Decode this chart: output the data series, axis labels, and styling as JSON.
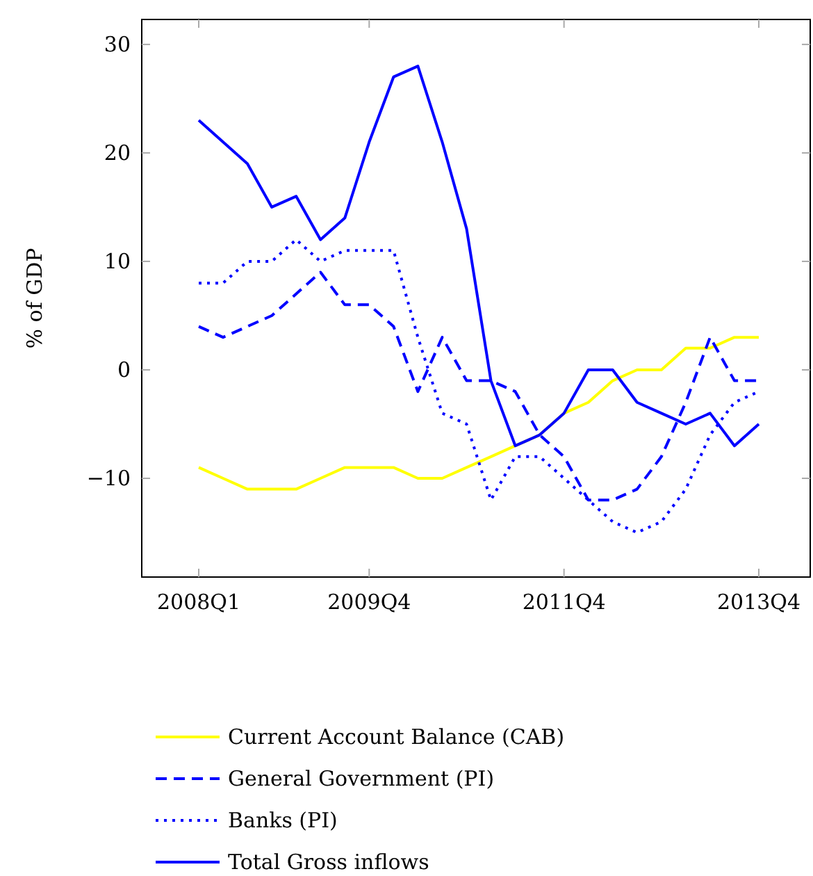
{
  "chart_data": {
    "type": "line",
    "ylabel": "% of GDP",
    "categories": [
      "2008Q1",
      null,
      null,
      null,
      null,
      null,
      null,
      "2009Q4",
      null,
      null,
      null,
      null,
      null,
      null,
      null,
      "2011Q4",
      null,
      null,
      null,
      null,
      null,
      null,
      null,
      "2013Q4"
    ],
    "ylim": [
      -19.1,
      32.3
    ],
    "yticks": [
      {
        "value": -10,
        "label": "−10"
      },
      0,
      10,
      20,
      30
    ],
    "legend": "bottom",
    "grid": false,
    "series": [
      {
        "name": "Current Account Balance (CAB)",
        "color": "#ffff00",
        "line_style": "solid",
        "values": [
          -9,
          -10,
          -11,
          -11,
          -11,
          -10,
          -9,
          -9,
          -9,
          -10,
          -10,
          -9,
          -8,
          -7,
          -6,
          -4,
          -3,
          -1,
          0,
          0,
          2,
          2,
          3,
          3
        ]
      },
      {
        "name": "General Government (PI)",
        "color": "#0000ff",
        "line_style": "dashed",
        "values": [
          4,
          3,
          4,
          5,
          7,
          9,
          6,
          6,
          4,
          -2,
          3,
          -1,
          -1,
          -2,
          -6,
          -8,
          -12,
          -12,
          -11,
          -8,
          -3,
          3,
          -1,
          -1
        ]
      },
      {
        "name": "Banks (PI)",
        "color": "#0000ff",
        "line_style": "dotted",
        "values": [
          8,
          8,
          10,
          10,
          12,
          10,
          11,
          11,
          11,
          3,
          -4,
          -5,
          -12,
          -8,
          -8,
          -10,
          -12,
          -14,
          -15,
          -14,
          -11,
          -6,
          -3,
          -2
        ]
      },
      {
        "name": "Total Gross inflows",
        "color": "#0000ff",
        "line_style": "solid",
        "values": [
          23,
          21,
          19,
          15,
          16,
          12,
          14,
          21,
          27,
          28,
          21,
          13,
          -1,
          -7,
          -6,
          -4,
          0,
          0,
          -3,
          -4,
          -5,
          -4,
          -7,
          -5
        ]
      }
    ]
  }
}
